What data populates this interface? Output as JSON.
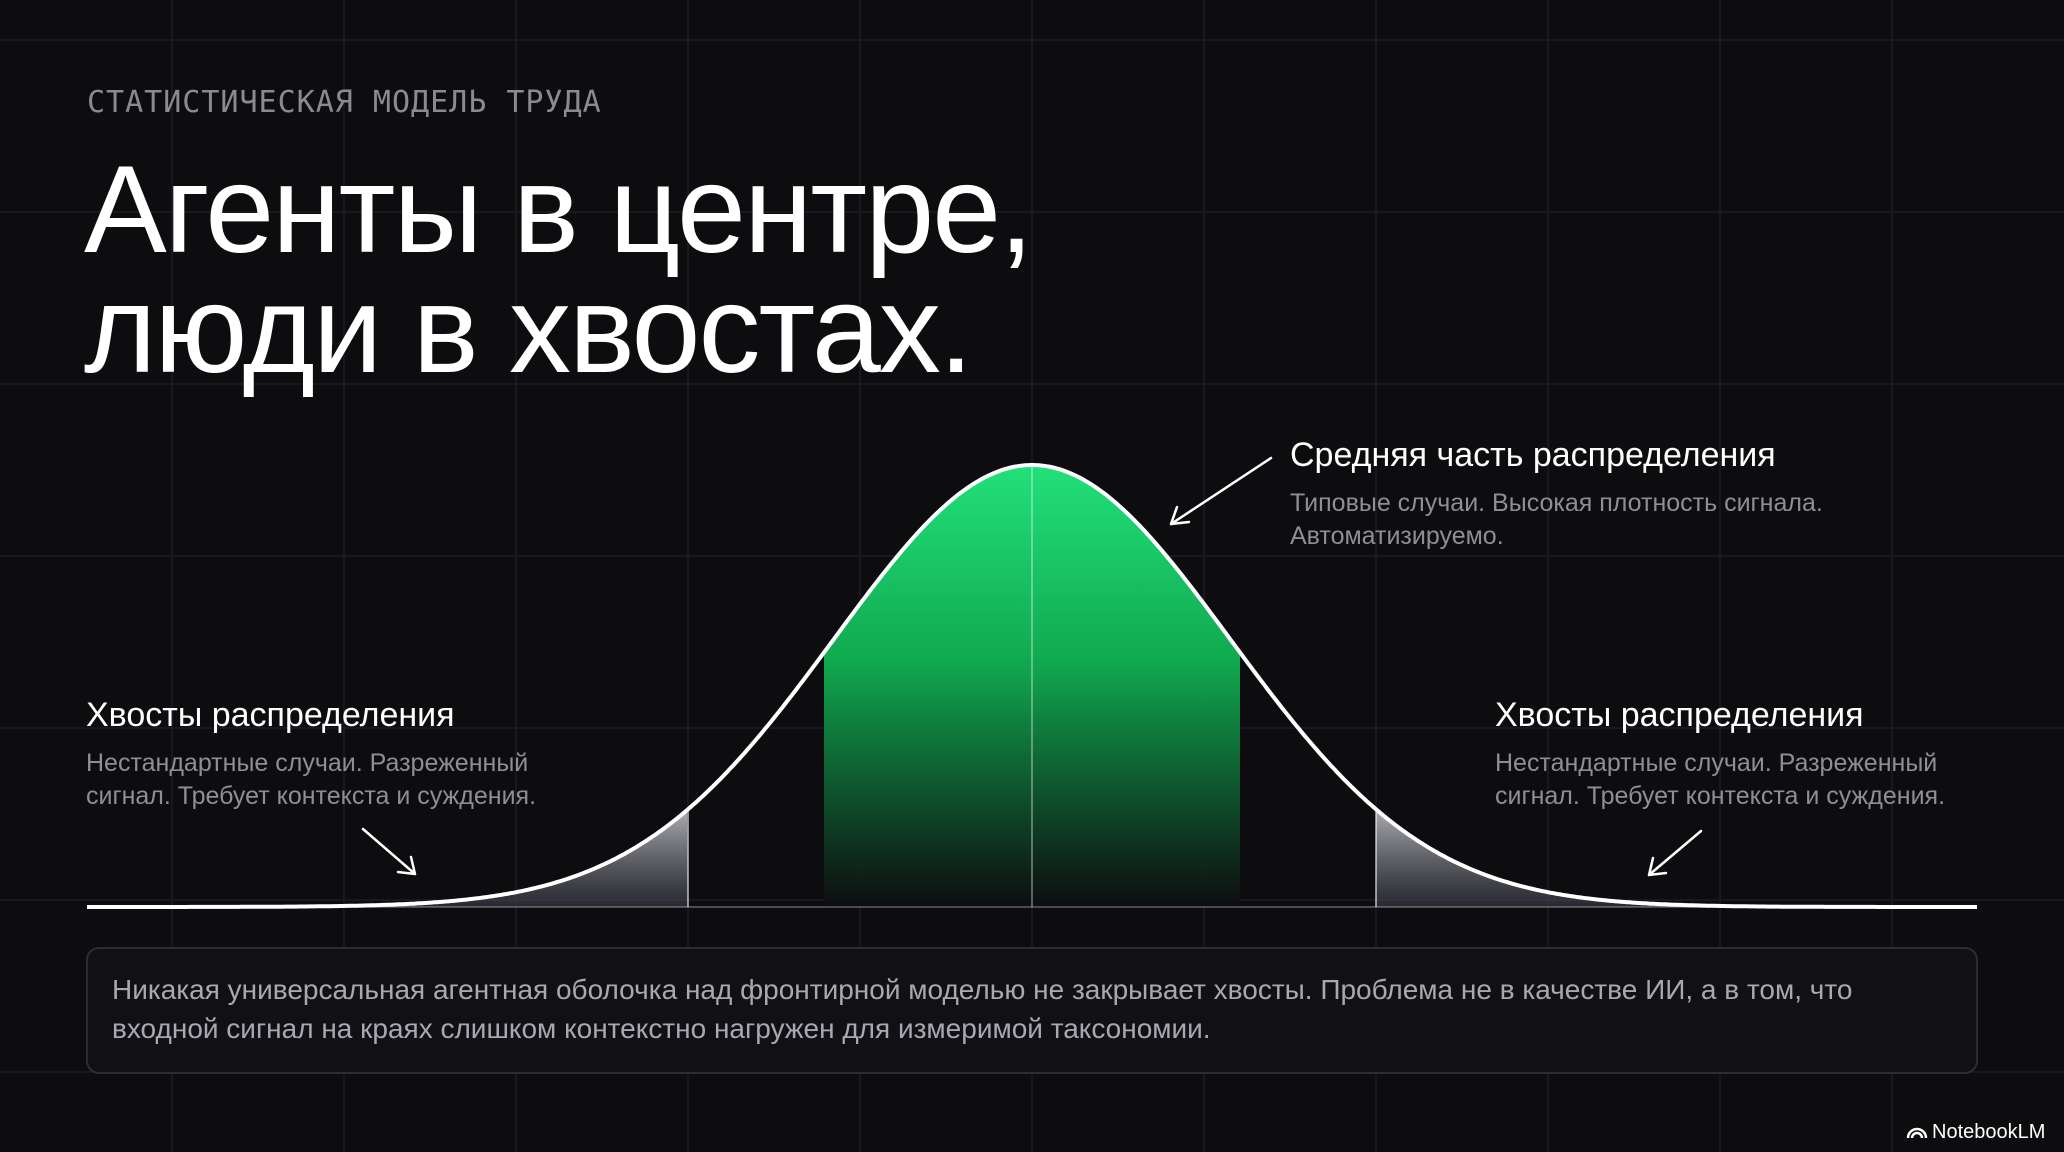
{
  "header": {
    "eyebrow": "СТАТИСТИЧЕСКАЯ МОДЕЛЬ ТРУДА",
    "title_lines": [
      "Агенты в центре,",
      "люди в хвостах."
    ]
  },
  "diagram": {
    "center": {
      "title": "Средняя часть распределения",
      "description_lines": [
        "Типовые случаи. Высокая плотность сигнала.",
        "Автоматизируемо."
      ]
    },
    "left_tail": {
      "title": "Хвосты распределения",
      "description_lines": [
        "Нестандартные случаи. Разреженный",
        "сигнал. Требует контекста и суждения."
      ]
    },
    "right_tail": {
      "title": "Хвосты распределения",
      "description_lines": [
        "Нестандартные случаи. Разреженный",
        "сигнал. Требует контекста и суждения."
      ]
    }
  },
  "note": {
    "lines": [
      "Никакая универсальная агентная оболочка над фронтирной моделью не закрывает хвосты. Проблема не в качестве ИИ, а в том, что",
      "входной сигнал на краях слишком контекстно нагружен для измеримой таксономии."
    ]
  },
  "brand": "NotebookLM"
}
